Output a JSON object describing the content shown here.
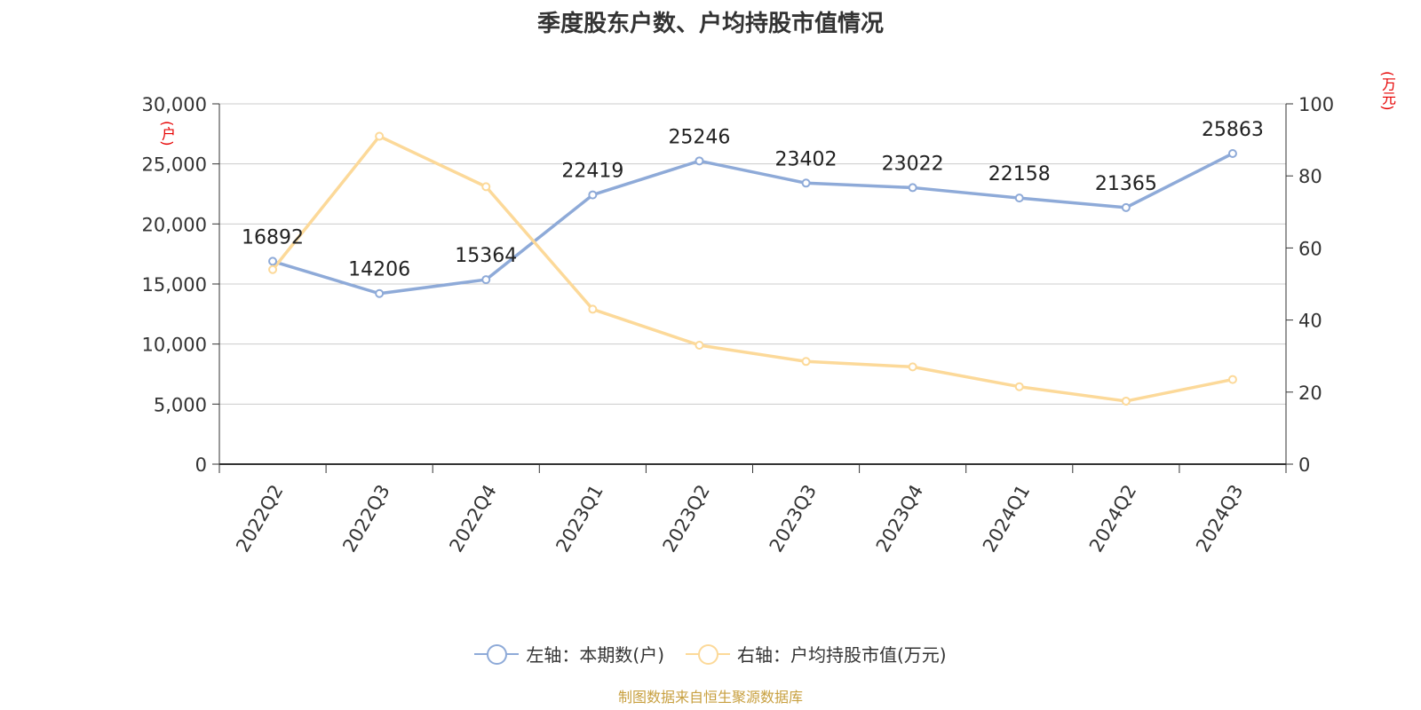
{
  "title": "季度股东户数、户均持股市值情况",
  "left_axis_unit": "(户)",
  "right_axis_unit": "(万元)",
  "source": "制图数据来自恒生聚源数据库",
  "legend": [
    {
      "label": "左轴：本期数(户)",
      "color": "#8eaad8"
    },
    {
      "label": "右轴：户均持股市值(万元)",
      "color": "#fcd999"
    }
  ],
  "chart_data": {
    "type": "line",
    "title": "季度股东户数、户均持股市值情况",
    "categories": [
      "2022Q2",
      "2022Q3",
      "2022Q4",
      "2023Q1",
      "2023Q2",
      "2023Q3",
      "2023Q4",
      "2024Q1",
      "2024Q2",
      "2024Q3"
    ],
    "series": [
      {
        "name": "左轴：本期数(户)",
        "axis": "left",
        "color": "#8eaad8",
        "values": [
          16892,
          14206,
          15364,
          22419,
          25246,
          23402,
          23022,
          22158,
          21365,
          25863
        ],
        "data_labels": [
          "16892",
          "14206",
          "15364",
          "22419",
          "25246",
          "23402",
          "23022",
          "22158",
          "21365",
          "25863"
        ]
      },
      {
        "name": "右轴：户均持股市值(万元)",
        "axis": "right",
        "color": "#fcd999",
        "values": [
          54,
          91,
          77,
          43,
          33,
          28.5,
          27,
          21.5,
          17.5,
          23.5
        ]
      }
    ],
    "left_axis": {
      "ylim": [
        0,
        30000
      ],
      "ticks": [
        0,
        5000,
        10000,
        15000,
        20000,
        25000,
        30000
      ],
      "tick_labels": [
        "0",
        "5,000",
        "10,000",
        "15,000",
        "20,000",
        "25,000",
        "30,000"
      ]
    },
    "right_axis": {
      "ylim": [
        0,
        100
      ],
      "ticks": [
        0,
        20,
        40,
        60,
        80,
        100
      ],
      "tick_labels": [
        "0",
        "20",
        "40",
        "60",
        "80",
        "100"
      ]
    },
    "grid": true,
    "legend_position": "bottom"
  }
}
